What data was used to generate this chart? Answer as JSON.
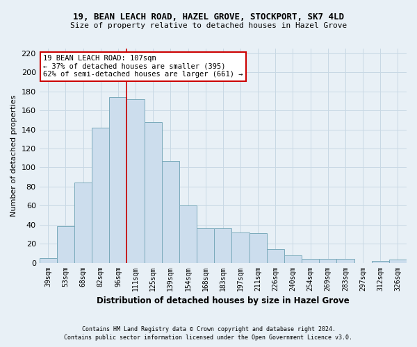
{
  "title1": "19, BEAN LEACH ROAD, HAZEL GROVE, STOCKPORT, SK7 4LD",
  "title2": "Size of property relative to detached houses in Hazel Grove",
  "xlabel": "Distribution of detached houses by size in Hazel Grove",
  "ylabel": "Number of detached properties",
  "footer1": "Contains HM Land Registry data © Crown copyright and database right 2024.",
  "footer2": "Contains public sector information licensed under the Open Government Licence v3.0.",
  "categories": [
    "39sqm",
    "53sqm",
    "68sqm",
    "82sqm",
    "96sqm",
    "111sqm",
    "125sqm",
    "139sqm",
    "154sqm",
    "168sqm",
    "183sqm",
    "197sqm",
    "211sqm",
    "226sqm",
    "240sqm",
    "254sqm",
    "269sqm",
    "283sqm",
    "297sqm",
    "312sqm",
    "326sqm"
  ],
  "values": [
    5,
    38,
    84,
    142,
    174,
    172,
    148,
    107,
    60,
    36,
    36,
    32,
    31,
    14,
    8,
    4,
    4,
    4,
    0,
    2,
    3
  ],
  "bar_color": "#ccdded",
  "bar_edge_color": "#7aaabb",
  "annotation_title": "19 BEAN LEACH ROAD: 107sqm",
  "annotation_line1": "← 37% of detached houses are smaller (395)",
  "annotation_line2": "62% of semi-detached houses are larger (661) →",
  "vline_color": "#cc0000",
  "annotation_box_color": "#ffffff",
  "annotation_box_edge": "#cc0000",
  "vline_x_index": 4.5,
  "ylim": [
    0,
    225
  ],
  "yticks": [
    0,
    20,
    40,
    60,
    80,
    100,
    120,
    140,
    160,
    180,
    200,
    220
  ],
  "grid_color": "#c8d8e4",
  "bg_color": "#e8f0f6",
  "title_fontsize": 9,
  "subtitle_fontsize": 8,
  "ylabel_fontsize": 8,
  "xlabel_fontsize": 8.5,
  "tick_fontsize": 7,
  "footer_fontsize": 6,
  "annot_fontsize": 7.5
}
